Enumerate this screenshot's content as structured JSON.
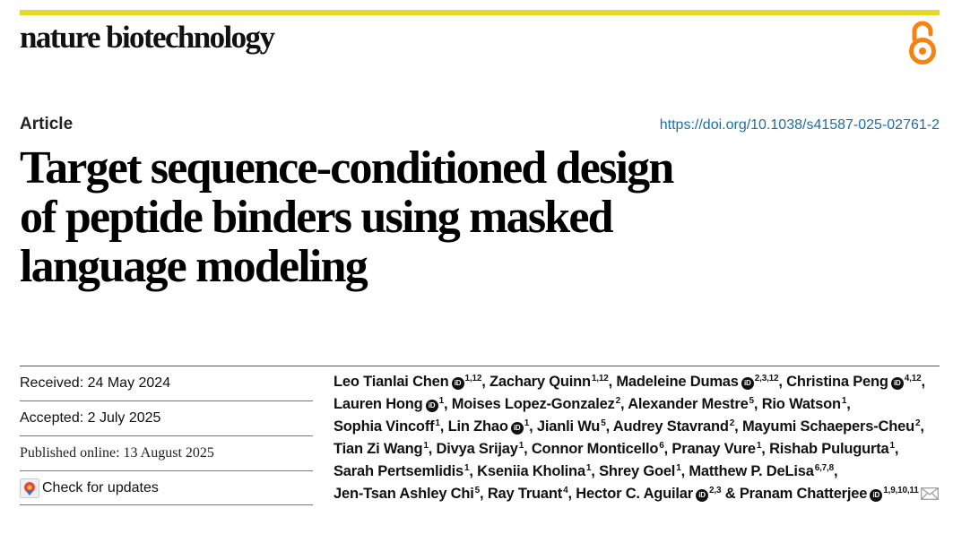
{
  "journal": {
    "name": "nature biotechnology"
  },
  "article": {
    "type": "Article",
    "doi": "https://doi.org/10.1038/s41587-025-02761-2",
    "title_lines": [
      "Target sequence-conditioned design",
      "of peptide binders using masked",
      "language modeling"
    ]
  },
  "dates": {
    "received": "Received: 24 May 2024",
    "accepted": "Accepted: 2 July 2025",
    "published": "Published online: 13 August 2025",
    "check_updates": "Check for updates"
  },
  "authors": [
    {
      "name": "Leo Tianlai Chen",
      "orcid": true,
      "aff": "1,12"
    },
    {
      "name": "Zachary Quinn",
      "orcid": false,
      "aff": "1,12"
    },
    {
      "name": "Madeleine Dumas",
      "orcid": true,
      "aff": "2,3,12"
    },
    {
      "name": "Christina Peng",
      "orcid": true,
      "aff": "4,12"
    },
    {
      "name": "Lauren Hong",
      "orcid": true,
      "aff": "1"
    },
    {
      "name": "Moises Lopez-Gonzalez",
      "orcid": false,
      "aff": "2"
    },
    {
      "name": "Alexander Mestre",
      "orcid": false,
      "aff": "5"
    },
    {
      "name": "Rio Watson",
      "orcid": false,
      "aff": "1"
    },
    {
      "name": "Sophia Vincoff",
      "orcid": false,
      "aff": "1"
    },
    {
      "name": "Lin Zhao",
      "orcid": true,
      "aff": "1"
    },
    {
      "name": "Jianli Wu",
      "orcid": false,
      "aff": "5"
    },
    {
      "name": "Audrey Stavrand",
      "orcid": false,
      "aff": "2"
    },
    {
      "name": "Mayumi Schaepers-Cheu",
      "orcid": false,
      "aff": "2"
    },
    {
      "name": "Tian Zi Wang",
      "orcid": false,
      "aff": "1"
    },
    {
      "name": "Divya Srijay",
      "orcid": false,
      "aff": "1"
    },
    {
      "name": "Connor Monticello",
      "orcid": false,
      "aff": "6"
    },
    {
      "name": "Pranay Vure",
      "orcid": false,
      "aff": "1"
    },
    {
      "name": "Rishab Pulugurta",
      "orcid": false,
      "aff": "1"
    },
    {
      "name": "Sarah Pertsemlidis",
      "orcid": false,
      "aff": "1"
    },
    {
      "name": "Kseniia Kholina",
      "orcid": false,
      "aff": "1"
    },
    {
      "name": "Shrey Goel",
      "orcid": false,
      "aff": "1"
    },
    {
      "name": "Matthew P. DeLisa",
      "orcid": false,
      "aff": "6,7,8"
    },
    {
      "name": "Jen-Tsan Ashley Chi",
      "orcid": false,
      "aff": "5"
    },
    {
      "name": "Ray Truant",
      "orcid": false,
      "aff": "4"
    },
    {
      "name": "Hector C. Aguilar",
      "orcid": true,
      "aff": "2,3"
    },
    {
      "name": "Pranam Chatterjee",
      "orcid": true,
      "aff": "1,9,10,11",
      "corresponding": true
    }
  ],
  "icons": {
    "orcid": "orcid-icon",
    "open_access": "open-access-lock-icon",
    "email": "envelope-icon",
    "check_updates": "check-for-updates-icon"
  },
  "colors": {
    "top_bar": "#e3d926",
    "open_access": "#f68212",
    "doi_link": "#1b6eab"
  }
}
